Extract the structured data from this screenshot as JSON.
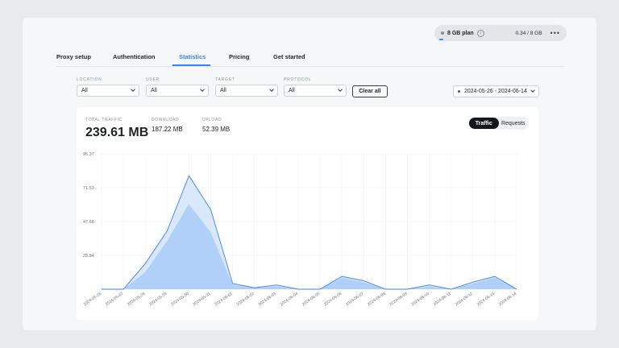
{
  "plan": {
    "name": "8 GB plan",
    "info_icon": "info-icon",
    "usage": "0.34 / 8 GB",
    "more_icon": "more-icon"
  },
  "tabs": [
    {
      "label": "Proxy setup"
    },
    {
      "label": "Authentication"
    },
    {
      "label": "Statistics",
      "active": true
    },
    {
      "label": "Pricing"
    },
    {
      "label": "Get started"
    }
  ],
  "filters": [
    {
      "label": "LOCATION",
      "value": "All"
    },
    {
      "label": "USER",
      "value": "All"
    },
    {
      "label": "TARGET",
      "value": "All"
    },
    {
      "label": "PROTOCOL",
      "value": "All"
    }
  ],
  "clear_label": "Clear all",
  "date_range": "2024-05-26 - 2024-06-14",
  "stats": {
    "total": {
      "label": "TOTAL TRAFFIC",
      "value": "239.61 MB"
    },
    "download": {
      "label": "DOWNLOAD",
      "value": "187.22 MB"
    },
    "upload": {
      "label": "UPLOAD",
      "value": "52.39 MB"
    }
  },
  "toggle": {
    "traffic": "Traffic",
    "requests": "Requests"
  },
  "colors": {
    "accent": "#3b82f6",
    "area_light": "#d6e6fb",
    "area_dark": "#a9cbf6"
  },
  "chart_data": {
    "type": "area",
    "x": [
      "2024-05-26",
      "2024-05-27",
      "2024-05-28",
      "2024-05-29",
      "2024-05-30",
      "2024-05-31",
      "2024-06-01",
      "2024-06-02",
      "2024-06-03",
      "2024-06-04",
      "2024-06-05",
      "2024-06-06",
      "2024-06-07",
      "2024-06-08",
      "2024-06-09",
      "2024-06-10",
      "2024-06-11",
      "2024-06-12",
      "2024-06-13",
      "2024-06-14"
    ],
    "yticks": [
      "95.37",
      "71.53",
      "47.68",
      "23.84"
    ],
    "ylim": [
      0,
      95.37
    ],
    "series": [
      {
        "values": [
          0,
          0,
          18,
          41,
          80,
          56,
          4,
          1,
          3,
          0,
          0,
          9,
          6,
          0,
          0,
          3,
          0,
          5,
          9,
          0
        ]
      },
      {
        "values": [
          0,
          0,
          12,
          34,
          60,
          40,
          3,
          1,
          2,
          0,
          0,
          8,
          5,
          0,
          0,
          2,
          0,
          4,
          8,
          0
        ]
      }
    ]
  }
}
